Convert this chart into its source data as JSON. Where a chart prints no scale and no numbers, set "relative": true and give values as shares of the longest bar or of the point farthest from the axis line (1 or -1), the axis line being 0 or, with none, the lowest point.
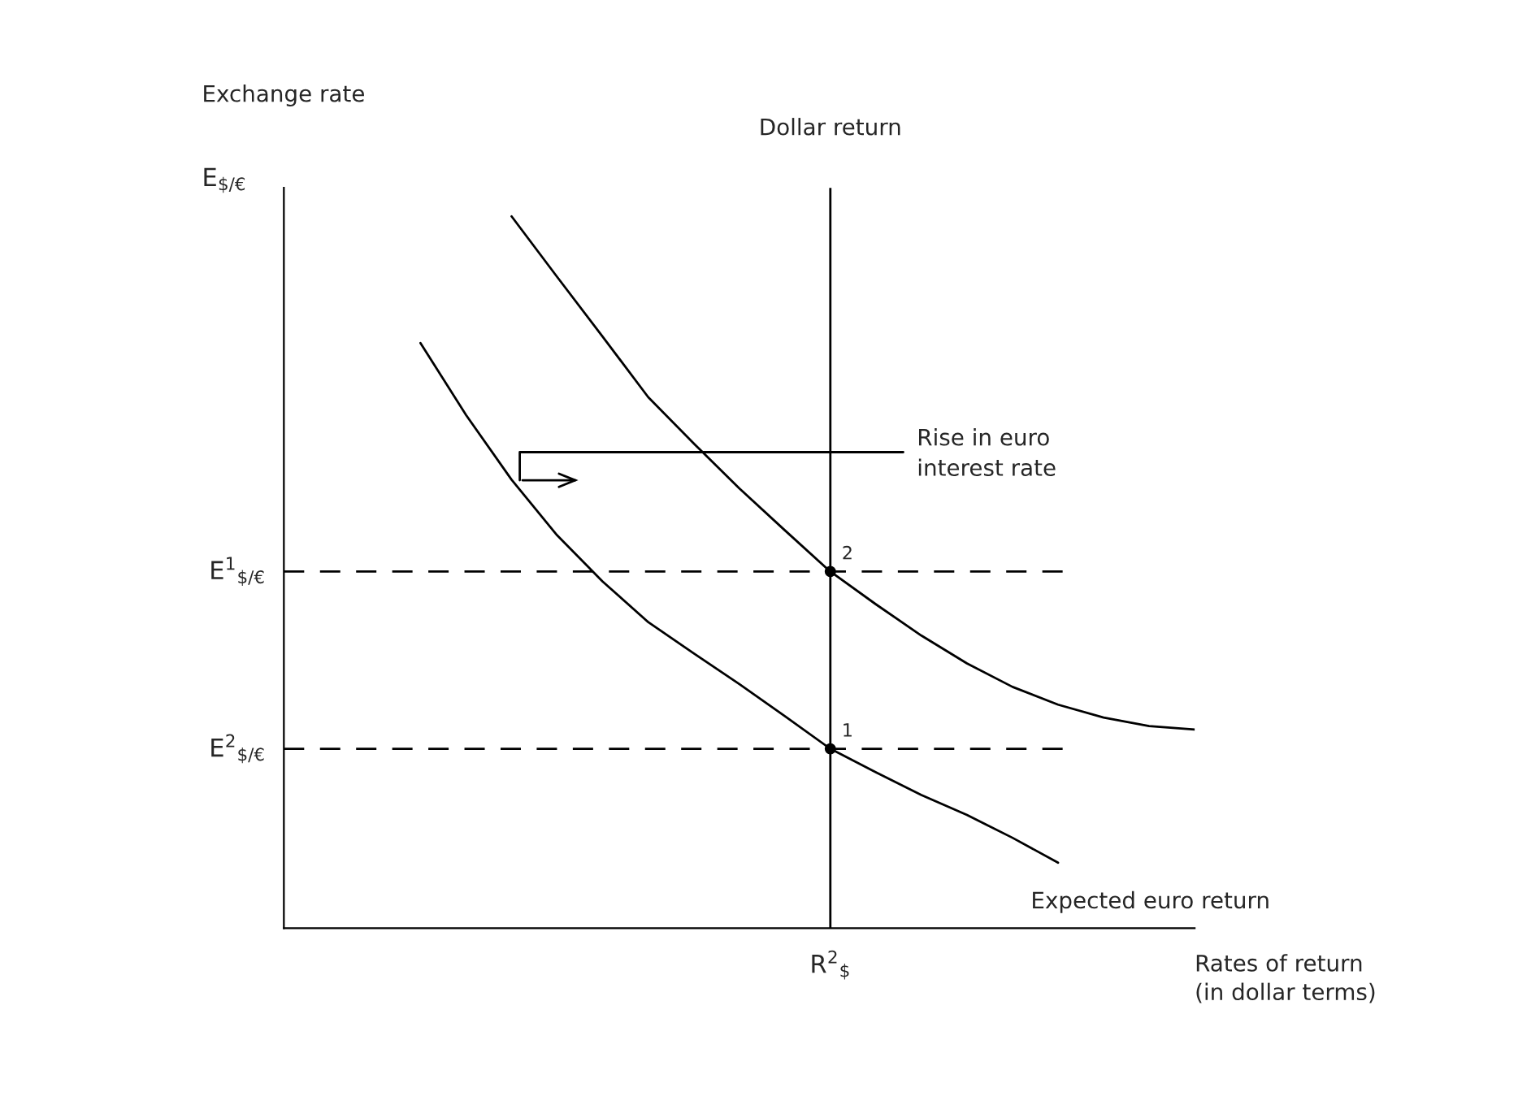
{
  "chart_data": {
    "type": "line",
    "relative": true,
    "ylabel": "Exchange rate",
    "xlabel": "Rates of return\n(in dollar terms)",
    "categories": [
      null,
      null,
      null,
      null,
      null,
      null,
      null,
      null,
      null,
      null,
      null,
      null,
      null,
      null,
      null,
      null,
      null,
      null,
      null,
      null,
      null
    ],
    "series": [
      {
        "name": "Expected euro return",
        "color": "#000000",
        "values": [
          null,
          null,
          null,
          0.822,
          0.721,
          0.63,
          0.552,
          0.487,
          0.43,
          0.386,
          0.343,
          0.298,
          0.252,
          0.219,
          0.187,
          0.159,
          0.127,
          0.092,
          null,
          null,
          null
        ]
      },
      {
        "color": "#000000",
        "values": [
          null,
          null,
          null,
          null,
          null,
          1.0,
          0.915,
          0.831,
          0.746,
          0.681,
          0.618,
          0.559,
          0.501,
          0.455,
          0.411,
          0.372,
          0.339,
          0.314,
          0.296,
          0.284,
          0.279
        ]
      }
    ],
    "ref_lines": [
      {
        "axis": "y",
        "value": 0.501,
        "label": "E$^{1}$$_{$/€}$",
        "line_style": "dashed",
        "color": "#000000"
      },
      {
        "axis": "y",
        "value": 0.252,
        "label": "E$^{2}$$_{$/€}$",
        "line_style": "dashed",
        "color": "#000000"
      }
    ],
    "annotations": [
      "Dollar return",
      "E$_{$/€}$",
      "R$^{2}$$_{$}$",
      "Rise in euro\ninterest rate",
      {
        "text": "1",
        "y": 0.252
      },
      {
        "text": "2",
        "y": 0.501
      }
    ],
    "legend": false
  }
}
